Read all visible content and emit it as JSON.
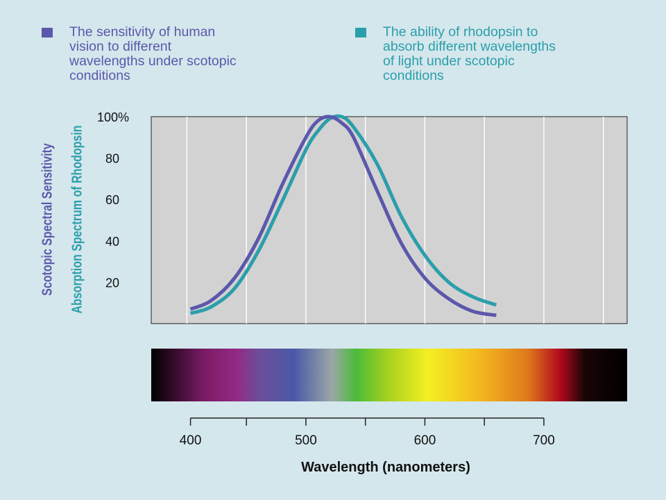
{
  "legend": [
    {
      "label": "The sensitivity of human\nvision to different\nwavelengths under scotopic\nconditions",
      "color": "#5b58ab"
    },
    {
      "label": "The ability of rhodopsin to\nabsorb different wavelengths\nof light under scotopic\nconditions",
      "color": "#2b9eab"
    }
  ],
  "colors": {
    "background": "#d4e7ec",
    "plot_background": "#d2d2d2",
    "grid": "#ffffff",
    "axis": "#222222",
    "spectrum_band": [
      "#000000",
      "#7a1b64",
      "#932a86",
      "#6a4f9a",
      "#4a59a8",
      "#9aa7a6",
      "#4bbb39",
      "#a8d21e",
      "#f4ef22",
      "#f3b81f",
      "#e07a1c",
      "#b0091d",
      "#1a0506",
      "#000000"
    ]
  },
  "chart_data": {
    "type": "line",
    "title": "",
    "xlabel": "Wavelength (nanometers)",
    "ylabels": [
      "Scotopic Spectral Sensitivity",
      "Absorption Spectrum of Rhodopsin"
    ],
    "xlim": [
      370,
      770
    ],
    "ylim": [
      0,
      100
    ],
    "x_ticks": [
      400,
      450,
      500,
      550,
      600,
      650,
      700
    ],
    "x_tick_labels": [
      "400",
      "",
      "500",
      "",
      "600",
      "",
      "700"
    ],
    "y_ticks": [
      20,
      40,
      60,
      80,
      100
    ],
    "y_tick_labels": [
      "20",
      "40",
      "60",
      "80",
      "100%"
    ],
    "grid": true,
    "legend_position": "top",
    "series": [
      {
        "name": "The sensitivity of human vision to different wavelengths under scotopic conditions",
        "color": "#5b58ab",
        "x": [
          403,
          420,
          440,
          460,
          480,
          500,
          510,
          520,
          530,
          540,
          560,
          580,
          600,
          620,
          640,
          660
        ],
        "y": [
          7,
          11,
          22,
          41,
          67,
          90,
          98,
          100,
          97,
          90,
          64,
          39,
          22,
          12,
          6,
          4
        ]
      },
      {
        "name": "The ability of rhodopsin to absorb different wavelengths of light under scotopic conditions",
        "color": "#2b9eab",
        "x": [
          403,
          420,
          440,
          460,
          480,
          500,
          510,
          520,
          530,
          540,
          560,
          580,
          600,
          620,
          640,
          660
        ],
        "y": [
          5,
          8,
          17,
          35,
          59,
          84,
          93,
          99,
          100,
          95,
          77,
          52,
          33,
          20,
          13,
          9
        ]
      }
    ]
  }
}
